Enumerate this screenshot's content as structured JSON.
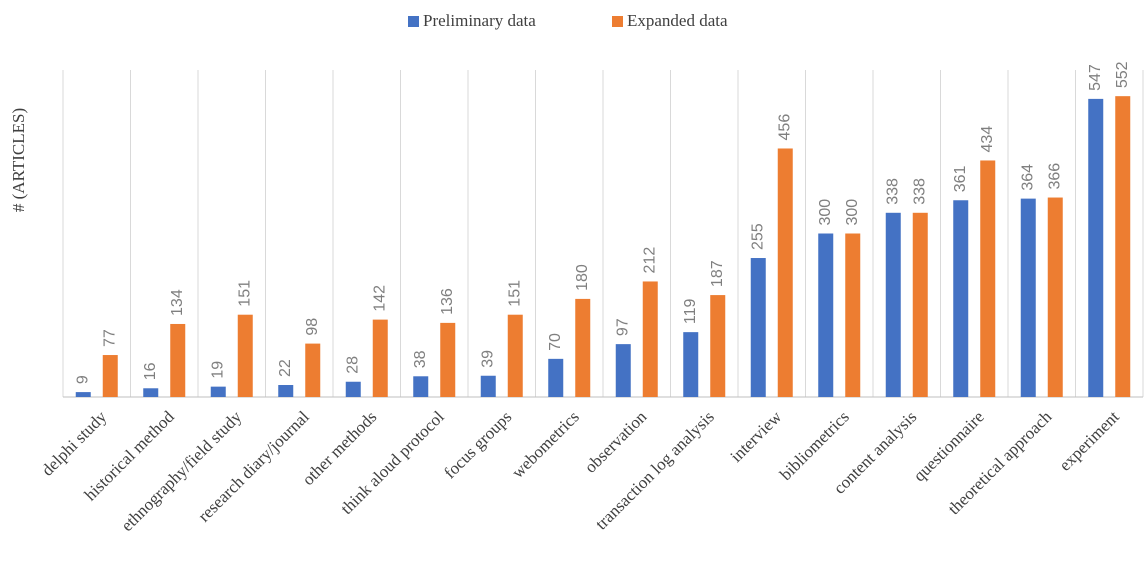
{
  "chart_data": {
    "type": "bar",
    "y_label": "# (ARTICLES)",
    "categories": [
      "delphi study",
      "historical method",
      "ethnography/field study",
      "research diary/journal",
      "other methods",
      "think aloud protocol",
      "focus groups",
      "webometrics",
      "observation",
      "transaction log analysis",
      "interview",
      "bibliometrics",
      "content analysis",
      "questionnaire",
      "theoretical approach",
      "experiment"
    ],
    "series": [
      {
        "name": "Preliminary data",
        "color": "#4472c4",
        "values": [
          9,
          16,
          19,
          22,
          28,
          38,
          39,
          70,
          97,
          119,
          255,
          300,
          338,
          361,
          364,
          547
        ]
      },
      {
        "name": "Expanded data",
        "color": "#ed7d31",
        "values": [
          77,
          134,
          151,
          98,
          142,
          136,
          151,
          180,
          212,
          187,
          456,
          300,
          338,
          434,
          366,
          552
        ]
      }
    ],
    "ylim": [
      0,
      600
    ],
    "grid": true,
    "legend": "top"
  }
}
